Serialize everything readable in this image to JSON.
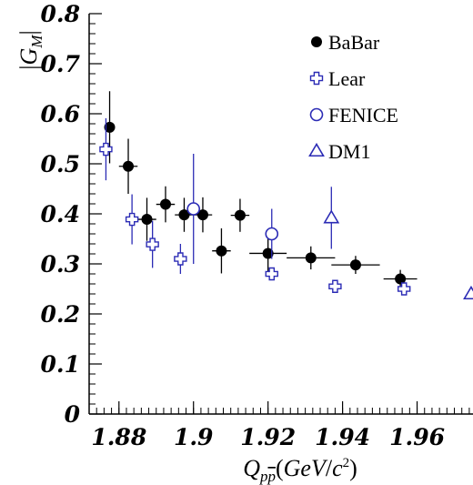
{
  "chart_data": {
    "type": "scatter",
    "title": "",
    "xlabel": "Q_{p p̄}(GeV/c²)",
    "ylabel": "|G_M|",
    "xlim": [
      1.872,
      1.975
    ],
    "ylim": [
      0,
      0.8
    ],
    "x_ticks": [
      1.88,
      1.9,
      1.92,
      1.94,
      1.96
    ],
    "x_tick_labels": [
      "1.88",
      "1.9",
      "1.92",
      "1.94",
      "1.96"
    ],
    "y_ticks": [
      0,
      0.1,
      0.2,
      0.3,
      0.4,
      0.5,
      0.6,
      0.7,
      0.8
    ],
    "y_tick_labels": [
      "0",
      "0.1",
      "0.2",
      "0.3",
      "0.4",
      "0.5",
      "0.6",
      "0.7",
      "0.8"
    ],
    "grid": false,
    "legend_position": "top-right",
    "series": [
      {
        "name": "BaBar",
        "marker": "filled-circle",
        "color": "#000000",
        "points": [
          {
            "x": 1.8775,
            "y": 0.573,
            "xerr": 0.0005,
            "yerr": 0.072
          },
          {
            "x": 1.8825,
            "y": 0.495,
            "xerr": 0.0025,
            "yerr": 0.055
          },
          {
            "x": 1.8875,
            "y": 0.389,
            "xerr": 0.0025,
            "yerr": 0.043
          },
          {
            "x": 1.8925,
            "y": 0.419,
            "xerr": 0.0025,
            "yerr": 0.036
          },
          {
            "x": 1.8975,
            "y": 0.398,
            "xerr": 0.0025,
            "yerr": 0.034
          },
          {
            "x": 1.9025,
            "y": 0.398,
            "xerr": 0.0025,
            "yerr": 0.035
          },
          {
            "x": 1.9075,
            "y": 0.326,
            "xerr": 0.0025,
            "yerr": 0.045
          },
          {
            "x": 1.9125,
            "y": 0.397,
            "xerr": 0.0025,
            "yerr": 0.033
          },
          {
            "x": 1.92,
            "y": 0.321,
            "xerr": 0.005,
            "yerr": 0.038
          },
          {
            "x": 1.9315,
            "y": 0.312,
            "xerr": 0.0065,
            "yerr": 0.023
          },
          {
            "x": 1.9435,
            "y": 0.298,
            "xerr": 0.0065,
            "yerr": 0.018
          },
          {
            "x": 1.9555,
            "y": 0.27,
            "xerr": 0.0045,
            "yerr": 0.018
          }
        ]
      },
      {
        "name": "Lear",
        "marker": "open-cross",
        "color": "#2b2bb5",
        "points": [
          {
            "x": 1.8765,
            "y": 0.529,
            "xerr": 0,
            "yerr": 0.062
          },
          {
            "x": 1.8835,
            "y": 0.389,
            "xerr": 0,
            "yerr": 0.05
          },
          {
            "x": 1.889,
            "y": 0.339,
            "xerr": 0,
            "yerr": 0.047
          },
          {
            "x": 1.8965,
            "y": 0.31,
            "xerr": 0,
            "yerr": 0.03
          },
          {
            "x": 1.921,
            "y": 0.28,
            "xerr": 0,
            "yerr": 0.012
          },
          {
            "x": 1.938,
            "y": 0.255,
            "xerr": 0,
            "yerr": 0.008
          },
          {
            "x": 1.9565,
            "y": 0.25,
            "xerr": 0,
            "yerr": 0.008
          }
        ]
      },
      {
        "name": "FENICE",
        "marker": "open-circle",
        "color": "#2b2bb5",
        "points": [
          {
            "x": 1.9,
            "y": 0.41,
            "xerr": 0,
            "yerr": 0.11
          },
          {
            "x": 1.921,
            "y": 0.36,
            "xerr": 0,
            "yerr": 0.05
          }
        ]
      },
      {
        "name": "DM1",
        "marker": "open-triangle",
        "color": "#2b2bb5",
        "points": [
          {
            "x": 1.937,
            "y": 0.392,
            "xerr": 0,
            "yerr": 0.062
          },
          {
            "x": 1.9745,
            "y": 0.24,
            "xerr": 0,
            "yerr": 0
          }
        ]
      }
    ]
  }
}
